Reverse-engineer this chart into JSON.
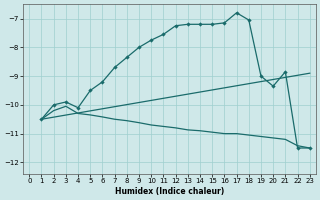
{
  "xlabel": "Humidex (Indice chaleur)",
  "background_color": "#cfe8e9",
  "grid_color": "#9fcfcf",
  "line_color": "#1a6b6b",
  "xlim": [
    -0.5,
    23.5
  ],
  "ylim": [
    -12.4,
    -6.5
  ],
  "yticks": [
    -12,
    -11,
    -10,
    -9,
    -8,
    -7
  ],
  "xticks": [
    0,
    1,
    2,
    3,
    4,
    5,
    6,
    7,
    8,
    9,
    10,
    11,
    12,
    13,
    14,
    15,
    16,
    17,
    18,
    19,
    20,
    21,
    22,
    23
  ],
  "curve1_x": [
    1,
    2,
    3,
    4,
    5,
    6,
    7,
    8,
    9,
    10,
    11,
    12,
    13,
    14,
    15,
    16,
    17,
    18,
    19,
    20,
    21,
    22,
    23
  ],
  "curve1_y": [
    -10.5,
    -10.0,
    -9.9,
    -10.1,
    -9.5,
    -9.2,
    -8.7,
    -8.35,
    -8.0,
    -7.75,
    -7.55,
    -7.25,
    -7.2,
    -7.2,
    -7.2,
    -7.15,
    -6.8,
    -7.05,
    -9.0,
    -9.35,
    -8.85,
    -11.5,
    -11.5
  ],
  "curve2_x": [
    1,
    2,
    3,
    4,
    5,
    6,
    7,
    8,
    9,
    10,
    11,
    12,
    13,
    14,
    15,
    16,
    17,
    18,
    19,
    20,
    21,
    22,
    23
  ],
  "curve2_y": [
    -10.5,
    -10.2,
    -10.05,
    -10.3,
    -10.35,
    -10.42,
    -10.5,
    -10.55,
    -10.62,
    -10.7,
    -10.75,
    -10.8,
    -10.87,
    -10.9,
    -10.95,
    -11.0,
    -11.0,
    -11.05,
    -11.1,
    -11.15,
    -11.2,
    -11.42,
    -11.5
  ],
  "line3_x": [
    1,
    23
  ],
  "line3_y": [
    -10.5,
    -8.9
  ]
}
